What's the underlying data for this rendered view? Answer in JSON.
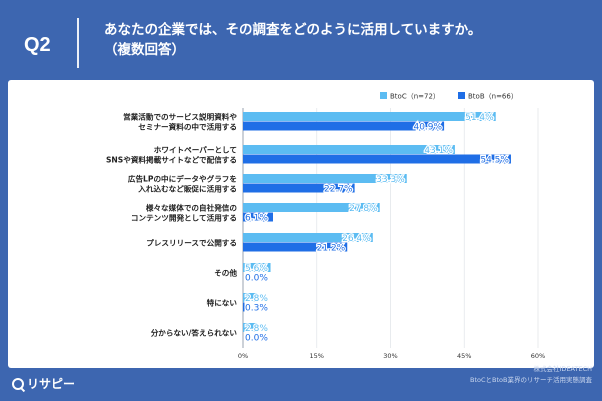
{
  "header": {
    "q_label": "Q2",
    "title_line1": "あなたの企業では、その調査をどのように活用していますか。",
    "title_line2": "（複数回答）"
  },
  "footer": {
    "logo_text": "リサピー",
    "credit_line1": "株式会社IDEATECH",
    "credit_line2": "BtoCとBtoB業界のリサーチ活用実態調査"
  },
  "colors": {
    "btoc": "#5cbcf2",
    "btob": "#1f6ee6",
    "background": "#3d66b0"
  },
  "chart_data": {
    "type": "bar",
    "orientation": "horizontal",
    "categories": [
      [
        "営業活動でのサービス説明資料や",
        "セミナー資料の中で活用する"
      ],
      [
        "ホワイトペーパーとして",
        "SNSや資料掲載サイトなどで配信する"
      ],
      [
        "広告LPの中にデータやグラフを",
        "入れ込むなど販促に活用する"
      ],
      [
        "様々な媒体での自社発信の",
        "コンテンツ開発として活用する"
      ],
      [
        "プレスリリースで公開する"
      ],
      [
        "その他"
      ],
      [
        "特にない"
      ],
      [
        "分からない/答えられない"
      ]
    ],
    "series": [
      {
        "name": "BtoC（n=72）",
        "values": [
          51.4,
          43.1,
          33.3,
          27.8,
          26.4,
          5.6,
          2.8,
          2.8
        ]
      },
      {
        "name": "BtoB（n=66）",
        "values": [
          40.9,
          54.5,
          22.7,
          6.1,
          21.2,
          0.0,
          0.3,
          0.0
        ]
      }
    ],
    "xlim": [
      0,
      60
    ],
    "xticks": [
      "0%",
      "15%",
      "30%",
      "45%",
      "60%"
    ],
    "value_suffix": "%",
    "grid": true,
    "legend_position": "top-right"
  }
}
